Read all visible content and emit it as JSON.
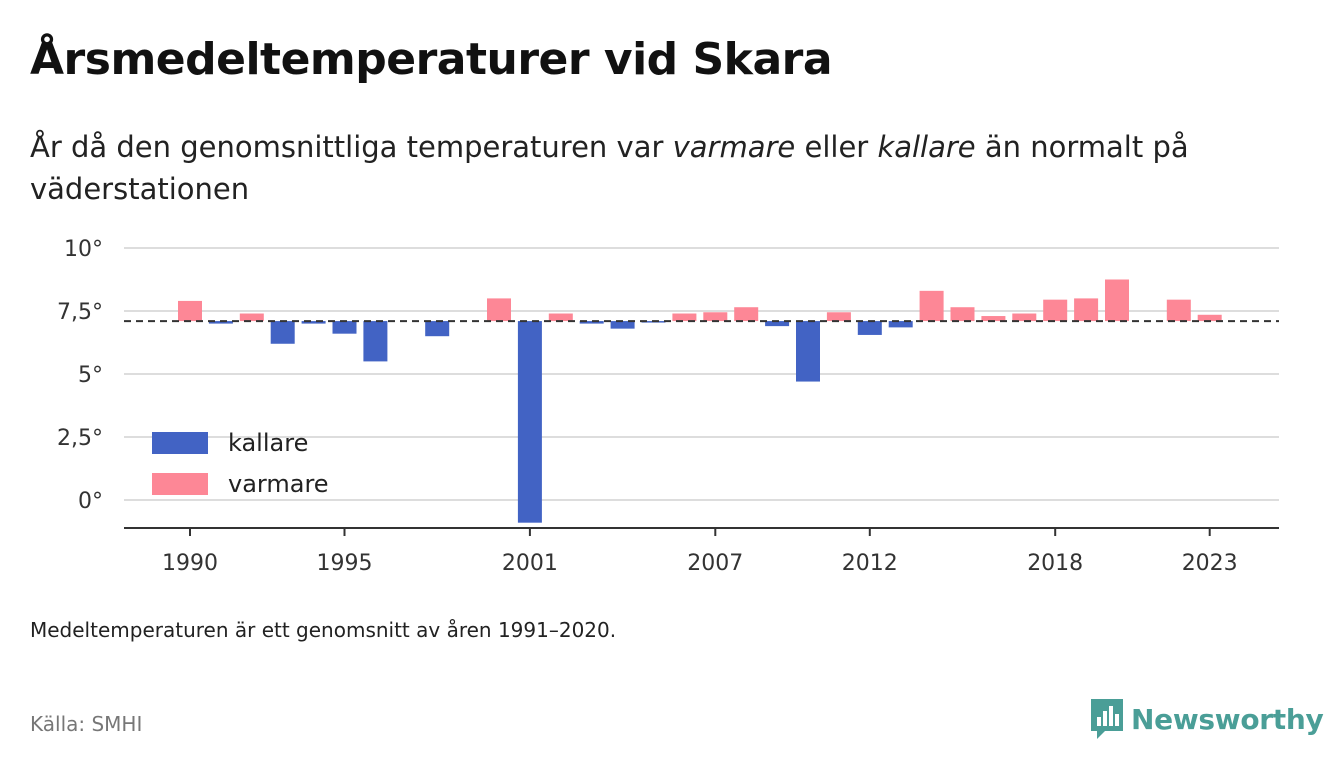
{
  "title": "Årsmedeltemperaturer vid Skara",
  "subtitle": {
    "part1": "År då den genomsnittliga temperaturen var ",
    "warmer": "varmare",
    "part2": " eller ",
    "colder": "kallare",
    "part3": " än normalt på väderstationen"
  },
  "footnote": "Medeltemperaturen är ett genomsnitt av åren 1991–2020.",
  "source": "Källa: SMHI",
  "brand": "Newsworthy",
  "chart_data": {
    "type": "bar",
    "baseline": 7.1,
    "ylim": [
      -1,
      10
    ],
    "y_ticks": [
      0,
      2.5,
      5,
      7.5,
      10
    ],
    "y_tick_labels": [
      "0°",
      "2,5°",
      "5°",
      "7,5°",
      "10°"
    ],
    "x_tick_years": [
      1990,
      1995,
      2001,
      2007,
      2012,
      2018,
      2023
    ],
    "grid": true,
    "legend_position": "bottom-left",
    "series": [
      {
        "name": "kallare",
        "color": "#4263c4"
      },
      {
        "name": "varmare",
        "color": "#fd8796"
      }
    ],
    "years": [
      1990,
      1991,
      1992,
      1993,
      1994,
      1995,
      1996,
      1997,
      1998,
      1999,
      2000,
      2001,
      2002,
      2003,
      2004,
      2005,
      2006,
      2007,
      2008,
      2009,
      2010,
      2011,
      2012,
      2013,
      2014,
      2015,
      2016,
      2017,
      2018,
      2019,
      2020,
      2021,
      2022,
      2023
    ],
    "values": [
      7.9,
      7.0,
      7.4,
      6.2,
      7.0,
      6.6,
      5.5,
      null,
      6.5,
      null,
      8.0,
      -0.9,
      7.4,
      7.0,
      6.8,
      7.05,
      7.4,
      7.45,
      7.65,
      6.9,
      4.7,
      7.45,
      6.55,
      6.85,
      8.3,
      7.65,
      7.3,
      7.4,
      7.95,
      8.0,
      8.75,
      null,
      7.95,
      7.35
    ]
  }
}
